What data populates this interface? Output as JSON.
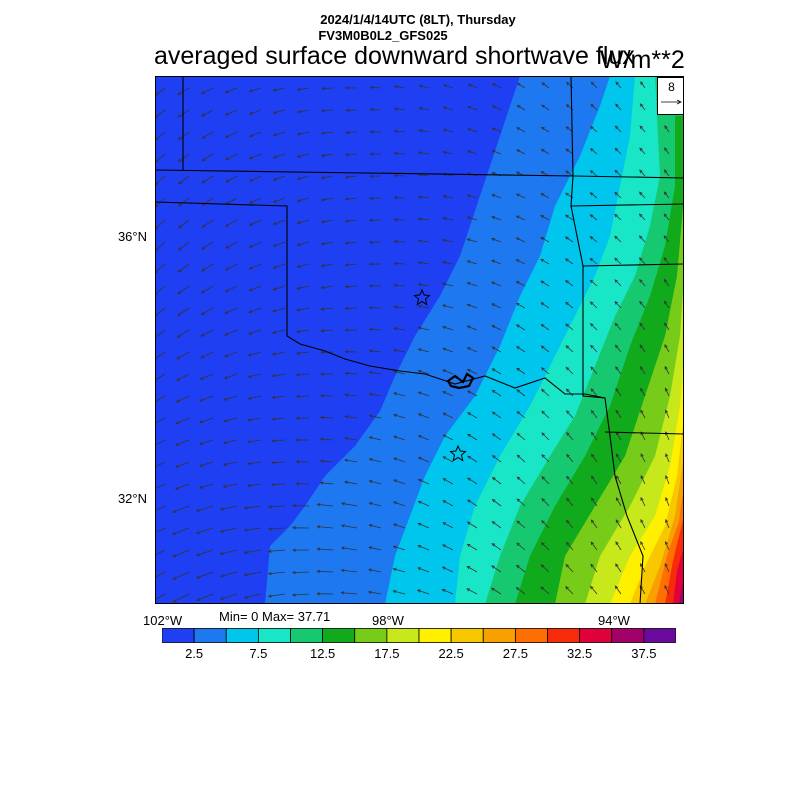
{
  "header": {
    "datetime_line": "2024/1/4/14UTC (8LT), Thursday",
    "model_line": "FV3M0B0L2_GFS025",
    "title": "averaged surface downward shortwave flux",
    "units": "W/m**2"
  },
  "vector_key": {
    "magnitude": "8"
  },
  "axes": {
    "lat_labels": [
      "36°N",
      "32°N"
    ],
    "lon_labels": [
      "102°W",
      "98°W",
      "94°W"
    ]
  },
  "stats": "Min= 0 Max= 37.71",
  "colorbar": {
    "colors": [
      "#1f3ff2",
      "#1e78f0",
      "#00c6ee",
      "#18e6c6",
      "#16c970",
      "#10aa1c",
      "#76cc18",
      "#c7e81a",
      "#fff000",
      "#f7c800",
      "#f7a000",
      "#ff6e00",
      "#f72a0a",
      "#e0003a",
      "#a00068",
      "#6a0a9c"
    ],
    "labels": [
      "2.5",
      "7.5",
      "12.5",
      "17.5",
      "22.5",
      "27.5",
      "32.5",
      "37.5"
    ]
  },
  "chart_data": {
    "type": "heatmap",
    "field": "averaged surface downward shortwave flux",
    "units": "W/m**2",
    "value_range": [
      0,
      37.71
    ],
    "lat_ticks": [
      36,
      32
    ],
    "lon_ticks": [
      -102,
      -98,
      -94
    ],
    "contour_levels": [
      2.5,
      5,
      7.5,
      10,
      12.5,
      15,
      17.5,
      20,
      22.5,
      25,
      27.5,
      30,
      32.5,
      35,
      37.5
    ],
    "gradient_description": "flux increases from ~0 in the west/northwest to ~37 in the far southeast corner",
    "station_markers": 2
  }
}
